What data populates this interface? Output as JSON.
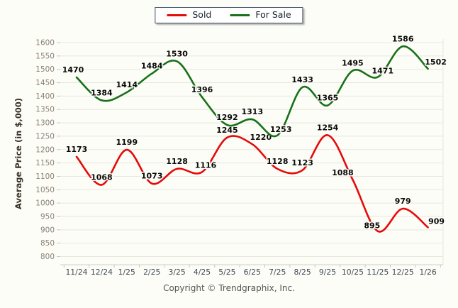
{
  "legend": {
    "items": [
      {
        "label": "Sold",
        "color": "#e60909"
      },
      {
        "label": "For Sale",
        "color": "#177117"
      }
    ]
  },
  "footer": {
    "copyright": "Copyright © Trendgraphix, Inc."
  },
  "chart_data": {
    "type": "line",
    "title": "",
    "xlabel": "",
    "ylabel": "Average Price (in $,000)",
    "x": [
      "11/24",
      "12/24",
      "1/25",
      "2/25",
      "3/25",
      "4/25",
      "5/25",
      "6/25",
      "7/25",
      "8/25",
      "9/25",
      "10/25",
      "11/25",
      "12/25",
      "1/26"
    ],
    "series": [
      {
        "name": "Sold",
        "color": "#e60909",
        "values": [
          1173,
          1068,
          1199,
          1073,
          1128,
          1116,
          1245,
          1220,
          1128,
          1123,
          1254,
          1088,
          895,
          979,
          909
        ]
      },
      {
        "name": "For Sale",
        "color": "#177117",
        "values": [
          1470,
          1384,
          1414,
          1484,
          1530,
          1396,
          1292,
          1313,
          1253,
          1433,
          1365,
          1495,
          1471,
          1586,
          1502
        ]
      }
    ],
    "ylim": [
      800,
      1600
    ],
    "ytick_step": 50,
    "grid": true,
    "legend_position": "top-center",
    "line_style": "smooth",
    "point_labels": true
  },
  "colors": {
    "background": "#fdfdf7",
    "gridline": "#e7e6de",
    "axis_line": "#cfcfc5",
    "tick": "#c7c7bd",
    "y_tick_text": "#8b8174",
    "x_tick_text": "#3f4a57",
    "axis_title_text": "#38332a",
    "data_label_text": "#0a0a0a"
  }
}
